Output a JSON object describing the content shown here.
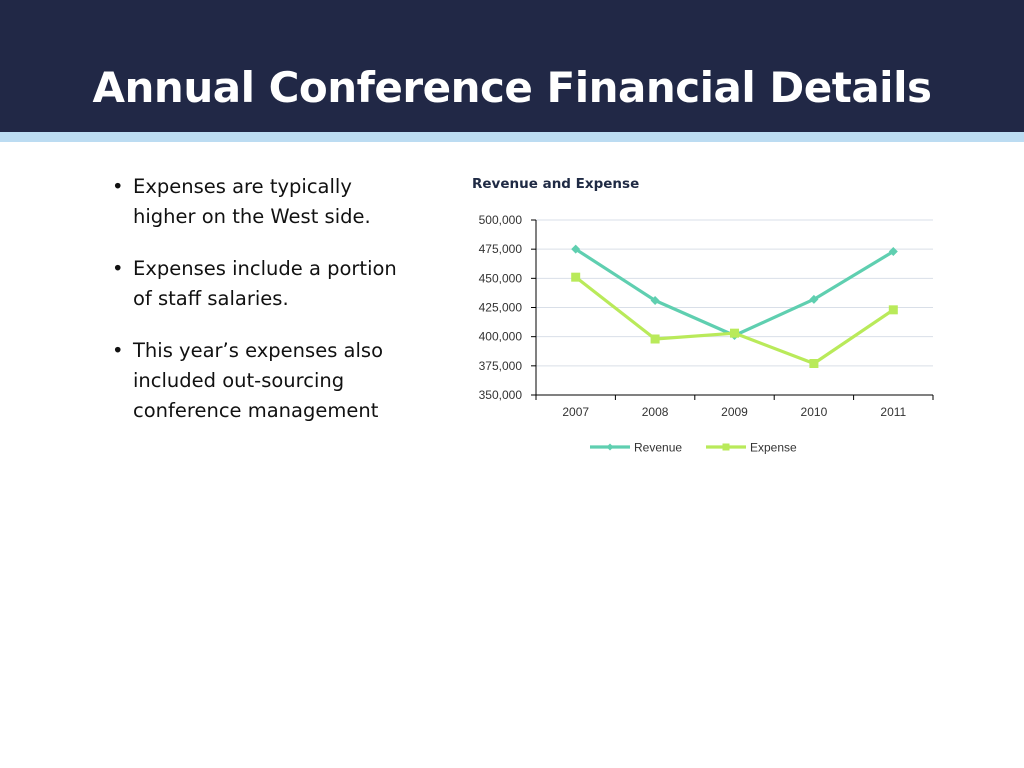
{
  "slide": {
    "title": "Annual Conference Financial Details",
    "bullets": [
      "Expenses are typically higher on the West side.",
      "Expenses include a portion of staff salaries.",
      "This year’s expenses also included out-sourcing conference management"
    ],
    "bullet_symbol": "•"
  },
  "colors": {
    "header_bg": "#212846",
    "header_stripe": "#bcdcf2",
    "revenue": "#5fcfb0",
    "expense": "#b9ea5a",
    "gridline": "#d9dfe8"
  },
  "chart_data": {
    "type": "line",
    "title": "Revenue and Expense",
    "categories": [
      "2007",
      "2008",
      "2009",
      "2010",
      "2011"
    ],
    "ylim": [
      350000,
      500000
    ],
    "yticks": [
      "350,000",
      "375,000",
      "400,000",
      "425,000",
      "450,000",
      "475,000",
      "500,000"
    ],
    "ytick_values": [
      350000,
      375000,
      400000,
      425000,
      450000,
      475000,
      500000
    ],
    "grid": true,
    "legend": "bottom",
    "series": [
      {
        "name": "Revenue",
        "values": [
          475000,
          431000,
          401000,
          432000,
          473000
        ],
        "color": "#5fcfb0",
        "marker": "diamond"
      },
      {
        "name": "Expense",
        "values": [
          451000,
          398000,
          403000,
          377000,
          423000
        ],
        "color": "#b9ea5a",
        "marker": "square"
      }
    ]
  }
}
